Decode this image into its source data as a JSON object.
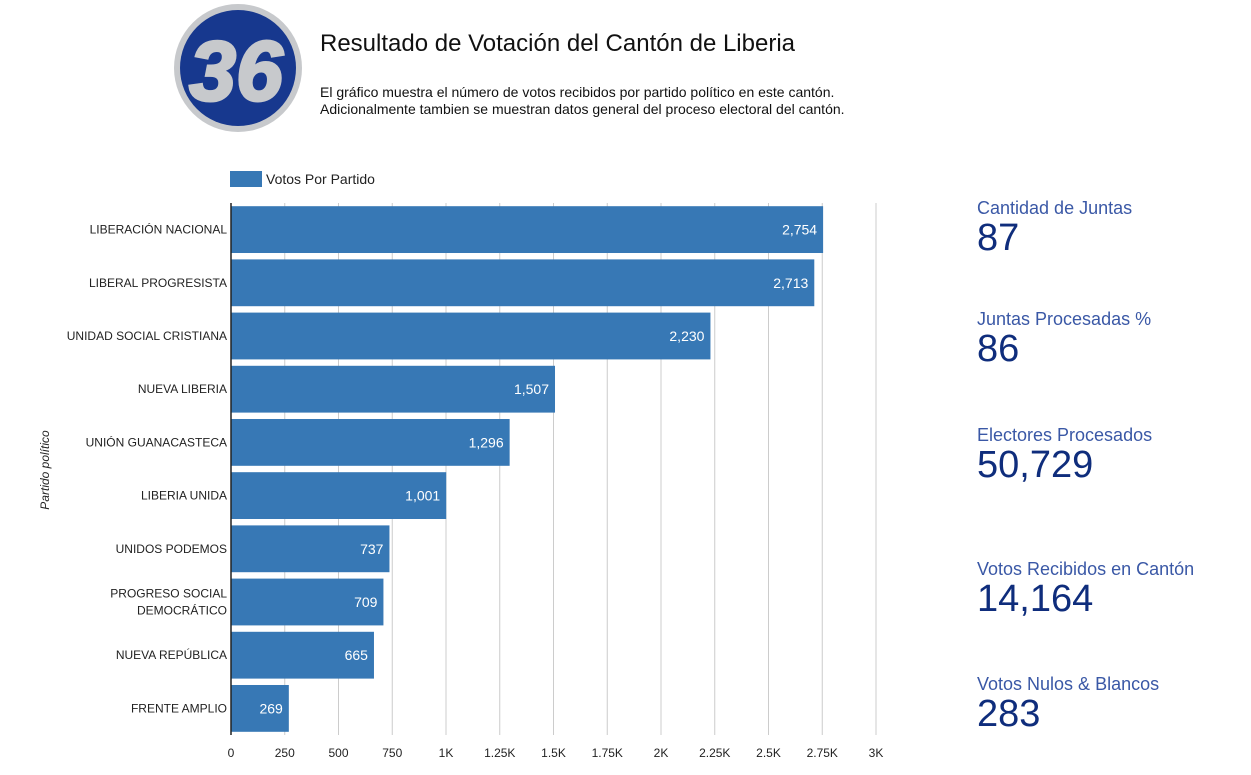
{
  "header": {
    "logo_text": "36",
    "title": "Resultado de Votación del Cantón de Liberia",
    "subtitle_lines": [
      "El gráfico muestra el número de votos recibidos por partido político en este cantón.",
      "Adicionalmente tambien se muestran datos general del proceso electoral del cantón."
    ]
  },
  "colors": {
    "bar": "#3778b5",
    "stat_label": "#3a58a6",
    "stat_value": "#0f2d7c",
    "logo_blue": "#17388e",
    "logo_gray": "#c7c9cc"
  },
  "chart_data": {
    "type": "bar",
    "orientation": "horizontal",
    "ylabel": "Partido político",
    "legend": "top-left",
    "grid": true,
    "xlim": [
      0,
      3000
    ],
    "x_ticks": [
      0,
      250,
      500,
      750,
      1000,
      1250,
      1500,
      1750,
      2000,
      2250,
      2500,
      2750,
      3000
    ],
    "x_tick_labels": [
      "0",
      "250",
      "500",
      "750",
      "1K",
      "1.25K",
      "1.5K",
      "1.75K",
      "2K",
      "2.25K",
      "2.5K",
      "2.75K",
      "3K"
    ],
    "categories": [
      "LIBERACIÓN NACIONAL",
      "LIBERAL PROGRESISTA",
      "UNIDAD SOCIAL CRISTIANA",
      "NUEVA LIBERIA",
      "UNIÓN GUANACASTECA",
      "LIBERIA UNIDA",
      "UNIDOS PODEMOS",
      "PROGRESO SOCIAL DEMOCRÁTICO",
      "NUEVA REPÚBLICA",
      "FRENTE AMPLIO"
    ],
    "category_lines": [
      [
        "LIBERACIÓN NACIONAL"
      ],
      [
        "LIBERAL PROGRESISTA"
      ],
      [
        "UNIDAD SOCIAL CRISTIANA"
      ],
      [
        "NUEVA LIBERIA"
      ],
      [
        "UNIÓN GUANACASTECA"
      ],
      [
        "LIBERIA UNIDA"
      ],
      [
        "UNIDOS PODEMOS"
      ],
      [
        "PROGRESO SOCIAL",
        "DEMOCRÁTICO"
      ],
      [
        "NUEVA REPÚBLICA"
      ],
      [
        "FRENTE AMPLIO"
      ]
    ],
    "series": [
      {
        "name": "Votos Por Partido",
        "values": [
          2754,
          2713,
          2230,
          1507,
          1296,
          1001,
          737,
          709,
          665,
          269
        ],
        "value_labels": [
          "2,754",
          "2,713",
          "2,230",
          "1,507",
          "1,296",
          "1,001",
          "737",
          "709",
          "665",
          "269"
        ]
      }
    ]
  },
  "stats": [
    {
      "label": "Cantidad de Juntas",
      "value": "87"
    },
    {
      "label": "Juntas Procesadas %",
      "value": "86"
    },
    {
      "label": "Electores Procesados",
      "value": "50,729"
    },
    {
      "label": "Votos Recibidos en Cantón",
      "value": "14,164"
    },
    {
      "label": "Votos Nulos & Blancos",
      "value": "283"
    }
  ]
}
